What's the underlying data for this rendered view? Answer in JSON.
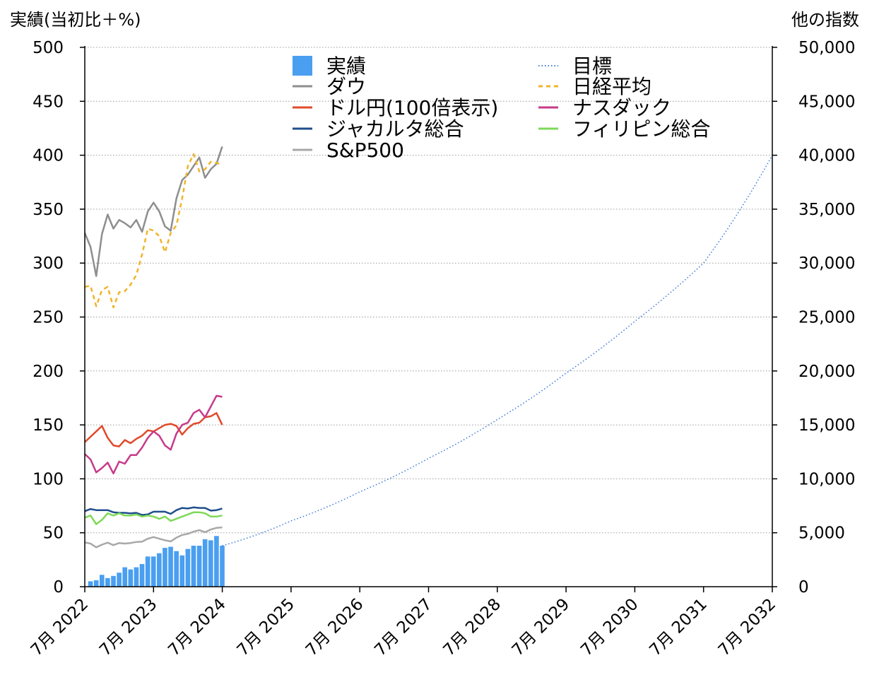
{
  "chart_data": {
    "type": "line",
    "y_left_label": "実績(当初比＋%)",
    "y_right_label": "他の指数",
    "y_left_range": [
      0,
      500
    ],
    "y_left_ticks": [
      "0",
      "50",
      "100",
      "150",
      "200",
      "250",
      "300",
      "350",
      "400",
      "450",
      "500"
    ],
    "y_right_range": [
      0,
      50000
    ],
    "y_right_ticks": [
      "0",
      "5,000",
      "10,000",
      "15,000",
      "20,000",
      "25,000",
      "30,000",
      "35,000",
      "40,000",
      "45,000",
      "50,000"
    ],
    "x_ticks": [
      "7月 2022",
      "7月 2023",
      "7月 2024",
      "7月 2025",
      "7月 2026",
      "7月 2027",
      "7月 2028",
      "7月 2029",
      "7月 2030",
      "7月 2031",
      "7月 2032"
    ],
    "x_range_years": [
      2022.5,
      2032.5
    ],
    "grid": "horizontal dotted",
    "legend_placement": "top",
    "series": [
      {
        "name": "実績",
        "kind": "bar",
        "axis": "left",
        "color": "#4a9ff0",
        "x_start": 2022.583,
        "x_step": 0.0833,
        "values": [
          5,
          6,
          11,
          8,
          10,
          13,
          18,
          16,
          18,
          21,
          28,
          28,
          31,
          36,
          37,
          33,
          29,
          35,
          38,
          38,
          44,
          43,
          47,
          38
        ]
      },
      {
        "name": "目標",
        "kind": "line",
        "style": "dotted",
        "axis": "right",
        "color": "#3c78d8",
        "x": [
          2024.5,
          2025.5,
          2026.5,
          2027.5,
          2028.5,
          2029.5,
          2030.5,
          2031.5,
          2032.5
        ],
        "values": [
          3800,
          6100,
          8800,
          11900,
          15500,
          19800,
          24600,
          30000,
          40000
        ]
      },
      {
        "name": "ダウ",
        "kind": "line",
        "axis": "right",
        "color": "#8e8e8e",
        "x_start": 2022.5,
        "x_step": 0.0833,
        "values": [
          32800,
          31500,
          28800,
          32700,
          34500,
          33200,
          34000,
          33700,
          33300,
          34000,
          32900,
          34800,
          35600,
          34800,
          33400,
          33000,
          36000,
          37700,
          38200,
          39000,
          39800,
          37900,
          38700,
          39200,
          40800
        ]
      },
      {
        "name": "日経平均",
        "kind": "line",
        "style": "dashed",
        "axis": "right",
        "color": "#f0b429",
        "x_start": 2022.5,
        "x_step": 0.0833,
        "values": [
          27800,
          27900,
          26000,
          27500,
          27800,
          25900,
          27300,
          27400,
          28000,
          28900,
          30800,
          33200,
          33000,
          32500,
          31000,
          32800,
          33500,
          36000,
          39000,
          40100,
          38500,
          38700,
          39400,
          39300,
          39100
        ]
      },
      {
        "name": "ドル円(100倍表示)",
        "kind": "line",
        "axis": "right",
        "color": "#e04a2a",
        "x_start": 2022.5,
        "x_step": 0.0833,
        "values": [
          13400,
          13900,
          14400,
          14900,
          13800,
          13100,
          13000,
          13600,
          13300,
          13700,
          14000,
          14500,
          14400,
          14700,
          15000,
          15100,
          14900,
          14100,
          14700,
          15100,
          15200,
          15700,
          15800,
          16100,
          15000
        ]
      },
      {
        "name": "ナスダック",
        "kind": "line",
        "axis": "right",
        "color": "#c63a8a",
        "x_start": 2022.5,
        "x_step": 0.0833,
        "values": [
          12300,
          11800,
          10600,
          11000,
          11500,
          10500,
          11600,
          11400,
          12200,
          12200,
          12900,
          13800,
          14400,
          14000,
          13100,
          12700,
          14200,
          15000,
          15200,
          16100,
          16400,
          15700,
          16700,
          17700,
          17600
        ]
      },
      {
        "name": "ジャカルタ総合",
        "kind": "line",
        "axis": "right",
        "color": "#1f4e8c",
        "x_start": 2022.5,
        "x_step": 0.0833,
        "values": [
          7000,
          7200,
          7100,
          7100,
          7100,
          6900,
          6850,
          6850,
          6800,
          6850,
          6650,
          6700,
          6950,
          6950,
          6950,
          6750,
          7100,
          7300,
          7250,
          7350,
          7300,
          7300,
          7050,
          7100,
          7250
        ]
      },
      {
        "name": "フィリピン総合",
        "kind": "line",
        "axis": "right",
        "color": "#7ed957",
        "x_start": 2022.5,
        "x_step": 0.0833,
        "values": [
          6400,
          6600,
          5800,
          6200,
          6800,
          6600,
          6800,
          6600,
          6600,
          6700,
          6500,
          6600,
          6500,
          6300,
          6500,
          6100,
          6300,
          6500,
          6700,
          6900,
          6900,
          6800,
          6500,
          6500,
          6600
        ]
      },
      {
        "name": "S&P500",
        "kind": "line",
        "axis": "right",
        "color": "#a8a8a8",
        "x_start": 2022.5,
        "x_step": 0.0833,
        "values": [
          4100,
          4000,
          3650,
          3900,
          4080,
          3850,
          4050,
          4000,
          4050,
          4150,
          4180,
          4450,
          4600,
          4450,
          4300,
          4200,
          4550,
          4800,
          4900,
          5100,
          5250,
          5050,
          5300,
          5450,
          5500
        ]
      }
    ],
    "legend_order": [
      "実績",
      "目標",
      "ダウ",
      "日経平均",
      "ドル円(100倍表示)",
      "ナスダック",
      "ジャカルタ総合",
      "フィリピン総合",
      "S&P500"
    ]
  }
}
